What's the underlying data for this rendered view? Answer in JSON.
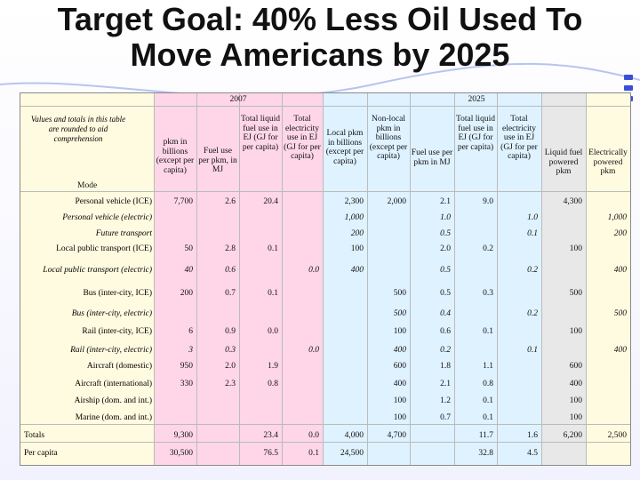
{
  "title": {
    "line1": "Target Goal: 40% Less Oil Used To",
    "line2": "Move Americans by 2025"
  },
  "table": {
    "year_2007": "2007",
    "year_2025": "2025",
    "note": "Values and totals in this table are rounded to aid comprehension",
    "mode_label": "Mode",
    "headers": {
      "h2007_pkm": "pkm in billions (except per capita)",
      "h2007_fuel": "Fuel use per pkm, in MJ",
      "h2007_liquid": "Total liquid fuel use in EJ (GJ for per capita)",
      "h2007_elec": "Total electricity use in EJ (GJ for per capita)",
      "h2025_local": "Local pkm in billions (except per capita)",
      "h2025_nonlocal": "Non-local pkm in billions (except per capita)",
      "h2025_fuel": "Fuel use per pkm in MJ",
      "h2025_liquid": "Total liquid fuel use in EJ (GJ for per capita)",
      "h2025_elec": "Total electricity use in EJ (GJ for per capita)",
      "h2025_liqpkm": "Liquid fuel powered pkm",
      "h2025_elecpkm": "Electrically powered pkm"
    },
    "rows": [
      {
        "mode": "Personal vehicle (ICE)",
        "italic": false,
        "v": [
          "7,700",
          "2.6",
          "20.4",
          "",
          "2,300",
          "2,000",
          "2.1",
          "9.0",
          "",
          "4,300",
          ""
        ]
      },
      {
        "mode": "Personal vehicle (electric)",
        "italic": true,
        "v": [
          "",
          "",
          "",
          "",
          "1,000",
          "",
          "1.0",
          "",
          "1.0",
          "",
          "1,000"
        ]
      },
      {
        "mode": "Future transport",
        "italic": true,
        "v": [
          "",
          "",
          "",
          "",
          "200",
          "",
          "0.5",
          "",
          "0.1",
          "",
          "200"
        ]
      },
      {
        "mode": "Local public transport (ICE)",
        "italic": false,
        "v": [
          "50",
          "2.8",
          "0.1",
          "",
          "100",
          "",
          "2.0",
          "0.2",
          "",
          "100",
          ""
        ]
      },
      {
        "mode": "Local public transport (electric)",
        "italic": true,
        "v": [
          "40",
          "0.6",
          "",
          "0.0",
          "400",
          "",
          "0.5",
          "",
          "0.2",
          "",
          "400"
        ]
      },
      {
        "mode": "Bus (inter-city, ICE)",
        "italic": false,
        "v": [
          "200",
          "0.7",
          "0.1",
          "",
          "",
          "500",
          "0.5",
          "0.3",
          "",
          "500",
          ""
        ]
      },
      {
        "mode": "Bus (inter-city, electric)",
        "italic": true,
        "v": [
          "",
          "",
          "",
          "",
          "",
          "500",
          "0.4",
          "",
          "0.2",
          "",
          "500"
        ]
      },
      {
        "mode": "Rail (inter-city, ICE)",
        "italic": false,
        "v": [
          "6",
          "0.9",
          "0.0",
          "",
          "",
          "100",
          "0.6",
          "0.1",
          "",
          "100",
          ""
        ]
      },
      {
        "mode": "Rail (inter-city, electric)",
        "italic": true,
        "v": [
          "3",
          "0.3",
          "",
          "0.0",
          "",
          "400",
          "0.2",
          "",
          "0.1",
          "",
          "400"
        ]
      },
      {
        "mode": "Aircraft (domestic)",
        "italic": false,
        "v": [
          "950",
          "2.0",
          "1.9",
          "",
          "",
          "600",
          "1.8",
          "1.1",
          "",
          "600",
          ""
        ]
      },
      {
        "mode": "Aircraft (international)",
        "italic": false,
        "v": [
          "330",
          "2.3",
          "0.8",
          "",
          "",
          "400",
          "2.1",
          "0.8",
          "",
          "400",
          ""
        ]
      },
      {
        "mode": "Airship (dom. and int.)",
        "italic": false,
        "v": [
          "",
          "",
          "",
          "",
          "",
          "100",
          "1.2",
          "0.1",
          "",
          "100",
          ""
        ]
      },
      {
        "mode": "Marine (dom. and int.)",
        "italic": false,
        "v": [
          "",
          "",
          "",
          "",
          "",
          "100",
          "0.7",
          "0.1",
          "",
          "100",
          ""
        ]
      }
    ],
    "totals": {
      "label": "Totals",
      "v": [
        "9,300",
        "",
        "23.4",
        "0.0",
        "4,000",
        "4,700",
        "",
        "11.7",
        "1.6",
        "6,200",
        "2,500"
      ]
    },
    "percapita": {
      "label": "Per capita",
      "v": [
        "30,500",
        "",
        "76.5",
        "0.1",
        "24,500",
        "",
        "",
        "32.8",
        "4.5",
        "",
        ""
      ]
    }
  }
}
